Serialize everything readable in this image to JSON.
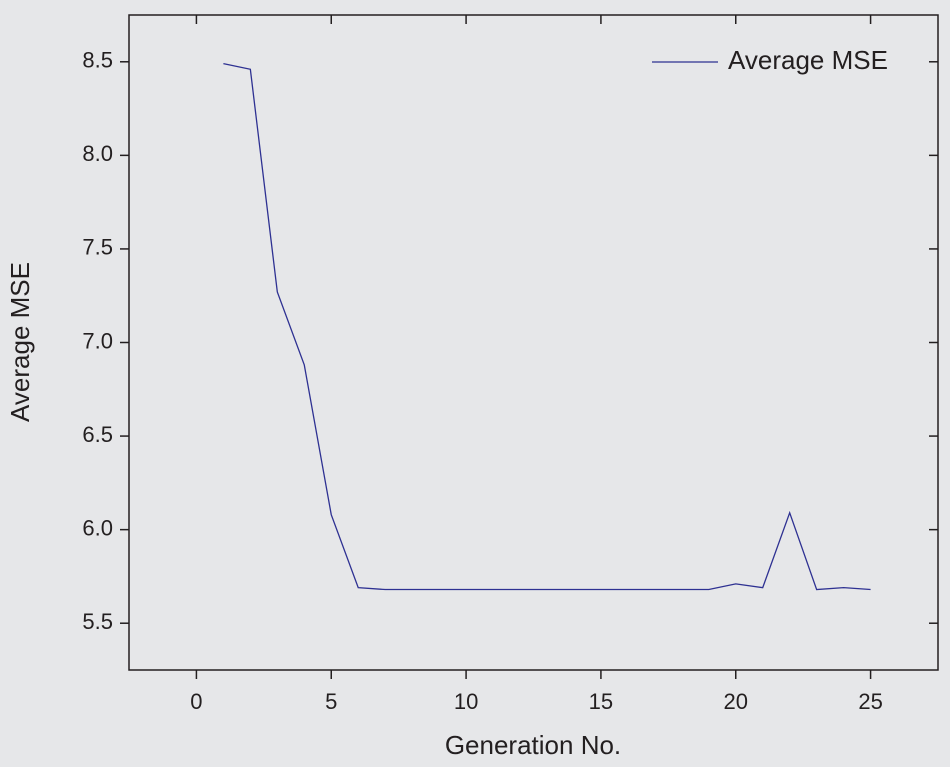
{
  "chart_data": {
    "type": "line",
    "x_label": "Generation No.",
    "y_label": "Average MSE",
    "x": [
      1,
      2,
      3,
      4,
      5,
      6,
      7,
      8,
      9,
      10,
      11,
      12,
      13,
      14,
      15,
      16,
      17,
      18,
      19,
      20,
      21,
      22,
      23,
      24,
      25
    ],
    "series": [
      {
        "name": "Average MSE",
        "color": "#2e3192",
        "values": [
          8.49,
          8.46,
          7.27,
          6.88,
          6.08,
          5.69,
          5.68,
          5.68,
          5.68,
          5.68,
          5.68,
          5.68,
          5.68,
          5.68,
          5.68,
          5.68,
          5.68,
          5.68,
          5.68,
          5.71,
          5.69,
          6.09,
          5.68,
          5.69,
          5.68
        ]
      }
    ],
    "xlim": [
      -2.5,
      27.5
    ],
    "xticks": [
      0,
      5,
      10,
      15,
      20,
      25
    ],
    "ylim": [
      5.25,
      8.75
    ],
    "yticks": [
      {
        "value": 5.5,
        "label": "5.5"
      },
      {
        "value": 6,
        "label": "6.0"
      },
      {
        "value": 6.5,
        "label": "6.5"
      },
      {
        "value": 7,
        "label": "7.0"
      },
      {
        "value": 7.5,
        "label": "7.5"
      },
      {
        "value": 8,
        "label": "8.0"
      },
      {
        "value": 8.5,
        "label": "8.5"
      }
    ],
    "legend": "upper right",
    "grid": false
  }
}
